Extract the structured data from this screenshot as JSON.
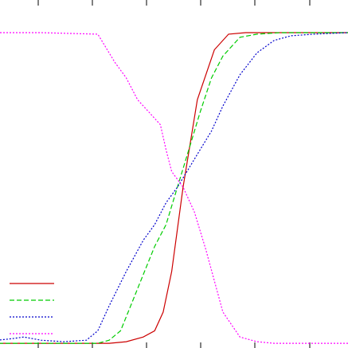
{
  "chart_data": {
    "type": "line",
    "title": "",
    "xlabel": "",
    "ylabel": "",
    "xlim": [
      0,
      6.4
    ],
    "ylim": [
      -0.01,
      1.0
    ],
    "x_ticks": [
      0,
      1,
      2,
      3,
      4,
      5,
      6
    ],
    "grid": false,
    "legend": {
      "position": "bottom-left",
      "show_labels": false
    },
    "series": [
      {
        "color": "#cc0000",
        "dash": "solid",
        "x": [
          0,
          2.2,
          2.5,
          2.8,
          3.0,
          3.15,
          3.3,
          3.5,
          3.75,
          4.05,
          4.3,
          4.6,
          5.0,
          5.5,
          6.0,
          6.4
        ],
        "y": [
          0.0,
          0.0,
          0.005,
          0.02,
          0.04,
          0.1,
          0.23,
          0.5,
          0.78,
          0.94,
          0.99,
          0.995,
          0.995,
          0.995,
          0.995,
          0.995
        ]
      },
      {
        "color": "#00cc00",
        "dash": "dashed",
        "x": [
          0,
          2.0,
          2.2,
          2.4,
          2.6,
          2.8,
          3.0,
          3.2,
          3.4,
          3.6,
          3.8,
          4.0,
          4.2,
          4.5,
          4.8,
          5.2,
          5.6,
          6.0,
          6.4
        ],
        "y": [
          0.0,
          0.0,
          0.01,
          0.04,
          0.13,
          0.22,
          0.31,
          0.38,
          0.5,
          0.62,
          0.74,
          0.85,
          0.92,
          0.98,
          0.99,
          0.995,
          0.995,
          0.995,
          0.995
        ]
      },
      {
        "color": "#0000cc",
        "dash": "dotted",
        "x": [
          0,
          0.5,
          0.7,
          1.0,
          1.4,
          1.8,
          2.0,
          2.2,
          2.5,
          2.8,
          3.0,
          3.2,
          3.4,
          3.6,
          3.8,
          4.0,
          4.2,
          4.5,
          4.8,
          5.1,
          5.4,
          5.8,
          6.4
        ],
        "y": [
          0.005,
          0.015,
          0.02,
          0.01,
          0.005,
          0.01,
          0.04,
          0.12,
          0.23,
          0.33,
          0.38,
          0.45,
          0.5,
          0.56,
          0.62,
          0.68,
          0.76,
          0.86,
          0.93,
          0.97,
          0.985,
          0.99,
          0.995
        ]
      },
      {
        "color": "#ff00ff",
        "dash": "dotted",
        "x": [
          0,
          1.0,
          2.0,
          2.3,
          2.5,
          2.7,
          2.9,
          3.1,
          3.2,
          3.3,
          3.5,
          3.7,
          3.9,
          4.2,
          4.5,
          4.8,
          5.1,
          5.5,
          5.9,
          6.4
        ],
        "y": [
          0.995,
          0.995,
          0.99,
          0.9,
          0.85,
          0.78,
          0.74,
          0.7,
          0.62,
          0.55,
          0.5,
          0.42,
          0.3,
          0.1,
          0.02,
          0.005,
          0.0,
          0.0,
          0.0,
          0.0
        ]
      }
    ]
  }
}
